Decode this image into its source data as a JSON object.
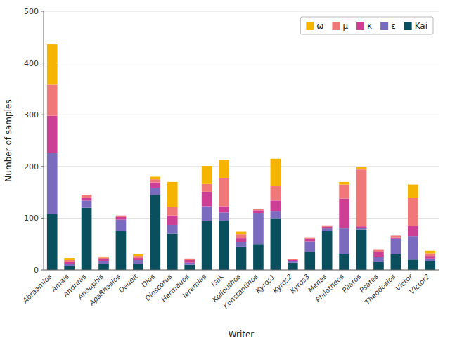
{
  "chart_data": {
    "type": "bar",
    "stacked": true,
    "categories": [
      "Abraamios",
      "Amais",
      "Andreas",
      "Anouphis",
      "ApaRhasios",
      "Daueit",
      "Dios",
      "Dioscorus",
      "Hermauos",
      "Ieremias",
      "Isak",
      "Kollouthos",
      "Konstantinos",
      "Kyros1",
      "Kyros2",
      "Kyros3",
      "Menas",
      "Philotheos",
      "Pilatos",
      "Psates",
      "Theodosios",
      "Victor",
      "Victor2"
    ],
    "series": [
      {
        "name": "Kai",
        "color": "#0a4f5e",
        "values": [
          108,
          7,
          120,
          12,
          75,
          12,
          145,
          70,
          10,
          95,
          95,
          45,
          50,
          100,
          14,
          35,
          75,
          30,
          78,
          15,
          30,
          20,
          17
        ]
      },
      {
        "name": "ε",
        "color": "#7b6bbf",
        "values": [
          118,
          4,
          14,
          5,
          22,
          7,
          14,
          17,
          4,
          28,
          16,
          8,
          60,
          14,
          3,
          20,
          5,
          50,
          3,
          10,
          30,
          45,
          5
        ]
      },
      {
        "name": "κ",
        "color": "#cc3f95",
        "values": [
          72,
          4,
          6,
          4,
          5,
          4,
          10,
          18,
          5,
          28,
          12,
          8,
          5,
          20,
          2,
          5,
          3,
          58,
          3,
          10,
          3,
          20,
          5
        ]
      },
      {
        "name": "μ",
        "color": "#f07878",
        "values": [
          60,
          4,
          5,
          3,
          3,
          4,
          6,
          17,
          3,
          15,
          55,
          8,
          3,
          28,
          2,
          3,
          3,
          27,
          110,
          5,
          3,
          55,
          5
        ]
      },
      {
        "name": "ω",
        "color": "#f5b400",
        "values": [
          78,
          4,
          0,
          2,
          0,
          3,
          5,
          48,
          0,
          35,
          35,
          5,
          0,
          53,
          0,
          0,
          0,
          5,
          5,
          0,
          0,
          25,
          5
        ]
      }
    ],
    "xlabel": "Writer",
    "ylabel": "Number of samples",
    "ylim": [
      0,
      500
    ],
    "yticks": [
      0,
      100,
      200,
      300,
      400,
      500
    ],
    "grid": true,
    "legend": "upper right"
  }
}
